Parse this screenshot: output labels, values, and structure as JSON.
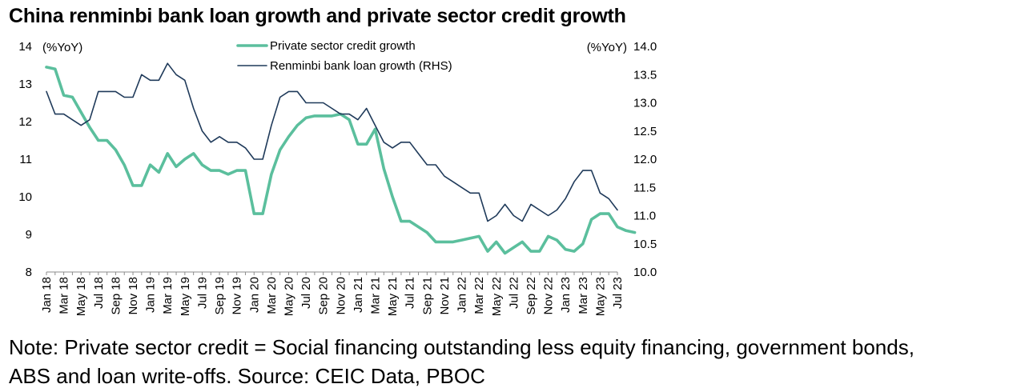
{
  "chart_data": {
    "type": "line",
    "title": "China renminbi bank loan growth and private sector credit growth",
    "left_axis": {
      "unit_label": "(%YoY)",
      "ylim": [
        8,
        14
      ],
      "ticks": [
        "8",
        "9",
        "10",
        "11",
        "12",
        "13",
        "14"
      ]
    },
    "right_axis": {
      "unit_label": "(%YoY)",
      "ylim": [
        10.0,
        14.0
      ],
      "ticks": [
        "10.0",
        "10.5",
        "11.0",
        "11.5",
        "12.0",
        "12.5",
        "13.0",
        "13.5",
        "14.0"
      ]
    },
    "x_tick_labels": [
      "Jan 18",
      "Mar 18",
      "May 18",
      "Jul 18",
      "Sep 18",
      "Nov 18",
      "Jan 19",
      "Mar 19",
      "May 19",
      "Jul 19",
      "Sep 19",
      "Nov 19",
      "Jan 20",
      "Mar 20",
      "May 20",
      "Jul 20",
      "Sep 20",
      "Nov 20",
      "Jan 21",
      "Mar 21",
      "May 21",
      "Jul 21",
      "Sep 21",
      "Nov 21",
      "Jan 22",
      "Mar 22",
      "May 22",
      "Jul 22",
      "Sep 22",
      "Nov 22",
      "Jan 23",
      "Mar 23",
      "May 23",
      "Jul 23"
    ],
    "x_start": "2018-01",
    "legend_position": "top-center",
    "grid": false,
    "series": [
      {
        "name": "Private sector credit growth",
        "axis": "left",
        "color": "#5bbf9d",
        "values": [
          13.45,
          13.4,
          12.7,
          12.65,
          12.25,
          11.85,
          11.5,
          11.5,
          11.25,
          10.85,
          10.3,
          10.3,
          10.85,
          10.65,
          11.15,
          10.8,
          11.0,
          11.15,
          10.85,
          10.7,
          10.7,
          10.6,
          10.7,
          10.7,
          9.55,
          9.55,
          10.6,
          11.25,
          11.6,
          11.9,
          12.1,
          12.15,
          12.15,
          12.15,
          12.2,
          12.05,
          11.4,
          11.4,
          11.8,
          10.75,
          10.0,
          9.35,
          9.35,
          9.2,
          9.05,
          8.8,
          8.8,
          8.8,
          8.85,
          8.9,
          8.95,
          8.55,
          8.8,
          8.5,
          8.65,
          8.8,
          8.55,
          8.55,
          8.95,
          8.85,
          8.6,
          8.55,
          8.75,
          9.4,
          9.55,
          9.55,
          9.2,
          9.1,
          9.05
        ]
      },
      {
        "name": "Renminbi bank loan growth (RHS)",
        "axis": "right",
        "color": "#1f3a5a",
        "values": [
          13.2,
          12.8,
          12.8,
          12.7,
          12.6,
          12.7,
          13.2,
          13.2,
          13.2,
          13.1,
          13.1,
          13.5,
          13.4,
          13.4,
          13.7,
          13.5,
          13.4,
          12.9,
          12.5,
          12.3,
          12.4,
          12.3,
          12.3,
          12.2,
          12.0,
          12.0,
          12.6,
          13.1,
          13.2,
          13.2,
          13.0,
          13.0,
          13.0,
          12.9,
          12.8,
          12.8,
          12.7,
          12.9,
          12.6,
          12.3,
          12.2,
          12.3,
          12.3,
          12.1,
          11.9,
          11.9,
          11.7,
          11.6,
          11.5,
          11.4,
          11.4,
          10.9,
          11.0,
          11.2,
          11.0,
          10.9,
          11.2,
          11.1,
          11.0,
          11.1,
          11.3,
          11.6,
          11.8,
          11.8,
          11.4,
          11.3,
          11.1
        ]
      }
    ]
  },
  "note": {
    "line1": "Note: Private sector credit = Social financing outstanding less equity financing, government bonds,",
    "line2": "ABS and loan write-offs. Source: CEIC Data, PBOC"
  }
}
